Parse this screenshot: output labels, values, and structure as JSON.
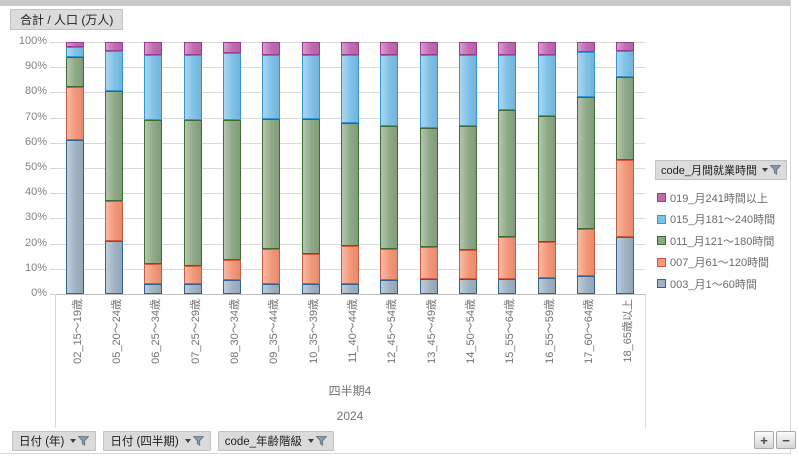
{
  "values_field_button": "合計 / 人口 (万人)",
  "legend": {
    "field_button": "code_月間就業時間"
  },
  "axis_filters": [
    {
      "label": "日付 (年)"
    },
    {
      "label": "日付 (四半期)"
    },
    {
      "label": "code_年齢階級"
    }
  ],
  "group_labels": {
    "quarter": "四半期4",
    "year": "2024"
  },
  "drill_buttons": {
    "expand": "+",
    "collapse": "−"
  },
  "colors": {
    "gridline": "#dadada",
    "axis_text": "#828282",
    "button_bg": "#dbdbdb"
  },
  "chart_data": {
    "type": "bar",
    "subtype": "stacked-100-percent",
    "title": "合計 / 人口 (万人)",
    "x_group_labels": [
      "四半期4",
      "2024"
    ],
    "ylim": [
      0,
      100
    ],
    "y_tick_step": 10,
    "y_tick_suffix": "%",
    "grid": true,
    "legend_position": "right",
    "legend_title": "code_月間就業時間",
    "categories": [
      "02_15〜19歳",
      "05_20〜24歳",
      "06_25〜34歳",
      "07_25〜29歳",
      "08_30〜34歳",
      "09_35〜44歳",
      "10_35〜39歳",
      "11_40〜44歳",
      "12_45〜54歳",
      "13_45〜49歳",
      "14_50〜54歳",
      "15_55〜64歳",
      "16_55〜59歳",
      "17_60〜64歳",
      "18_65歳以上"
    ],
    "series": [
      {
        "name": "003_月1〜60時間",
        "fill": "#9eb2c4",
        "border": "#31628f",
        "values": [
          61,
          21,
          4,
          4,
          5.5,
          4,
          4,
          4,
          5.5,
          6,
          6,
          6,
          6.5,
          7,
          22.5
        ]
      },
      {
        "name": "007_月61〜120時間",
        "fill": "#f49678",
        "border": "#d25a3c",
        "values": [
          21,
          16,
          8,
          7,
          8,
          14,
          12,
          15,
          12.5,
          12.5,
          11.5,
          16.5,
          14,
          19,
          30.5
        ]
      },
      {
        "name": "011_月121〜180時間",
        "fill": "#8ca884",
        "border": "#3e6b34",
        "values": [
          12,
          43.5,
          57,
          58,
          55.5,
          51.5,
          53.5,
          49,
          48.5,
          47.5,
          49,
          50.5,
          50,
          52,
          33
        ]
      },
      {
        "name": "015_月181〜240時間",
        "fill": "#7ec1e8",
        "border": "#3296d5",
        "values": [
          4,
          16,
          26,
          26,
          26.5,
          25.5,
          25.5,
          27,
          28.5,
          29,
          28.5,
          22,
          24.5,
          18,
          10.5
        ]
      },
      {
        "name": "019_月241時間以上",
        "fill": "#c06bb0",
        "border": "#9a3d90",
        "values": [
          2,
          3.5,
          5,
          5,
          4.5,
          5,
          5,
          5,
          5,
          5,
          5,
          5,
          5,
          4,
          3.5
        ]
      }
    ]
  }
}
